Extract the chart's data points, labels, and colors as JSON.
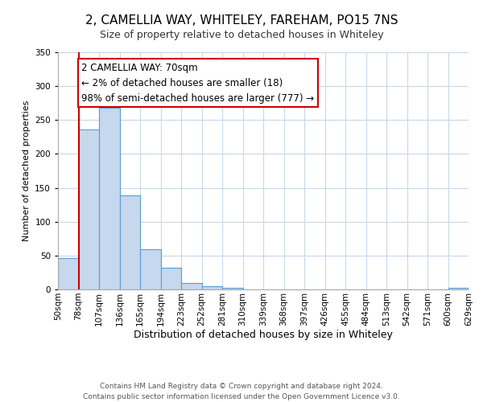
{
  "title": "2, CAMELLIA WAY, WHITELEY, FAREHAM, PO15 7NS",
  "subtitle": "Size of property relative to detached houses in Whiteley",
  "bar_values": [
    46,
    236,
    268,
    139,
    59,
    32,
    10,
    5,
    2,
    0,
    0,
    0,
    0,
    0,
    0,
    0,
    0,
    0,
    0,
    2
  ],
  "bin_labels": [
    "50sqm",
    "78sqm",
    "107sqm",
    "136sqm",
    "165sqm",
    "194sqm",
    "223sqm",
    "252sqm",
    "281sqm",
    "310sqm",
    "339sqm",
    "368sqm",
    "397sqm",
    "426sqm",
    "455sqm",
    "484sqm",
    "513sqm",
    "542sqm",
    "571sqm",
    "600sqm",
    "629sqm"
  ],
  "bar_color": "#c5d8ed",
  "bar_edge_color": "#5b9bd5",
  "bar_edge_width": 0.8,
  "vline_x": 1,
  "vline_color": "#cc0000",
  "xlabel": "Distribution of detached houses by size in Whiteley",
  "ylabel": "Number of detached properties",
  "ylim": [
    0,
    350
  ],
  "yticks": [
    0,
    50,
    100,
    150,
    200,
    250,
    300,
    350
  ],
  "annotation_title": "2 CAMELLIA WAY: 70sqm",
  "annotation_line1": "← 2% of detached houses are smaller (18)",
  "annotation_line2": "98% of semi-detached houses are larger (777) →",
  "annotation_box_color": "#ffffff",
  "annotation_box_edge_color": "#cc0000",
  "footer_line1": "Contains HM Land Registry data © Crown copyright and database right 2024.",
  "footer_line2": "Contains public sector information licensed under the Open Government Licence v3.0.",
  "background_color": "#ffffff",
  "grid_color": "#c8d8e8",
  "title_fontsize": 11,
  "subtitle_fontsize": 9,
  "xlabel_fontsize": 9,
  "ylabel_fontsize": 8,
  "tick_fontsize": 7.5,
  "footer_fontsize": 6.5,
  "annotation_fontsize": 8.5
}
